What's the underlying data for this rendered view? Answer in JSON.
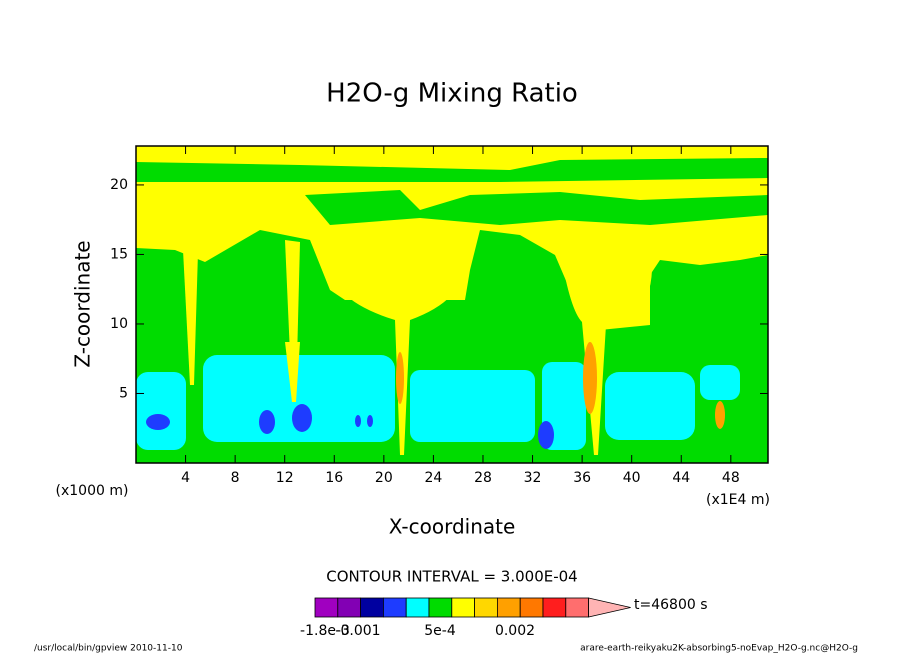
{
  "chart_data": {
    "type": "contour",
    "title": "H2O-g Mixing Ratio",
    "x_label": "X-coordinate",
    "y_label": "Z-coordinate",
    "x_unit": "(x1E4 m)",
    "y_unit": "(x1000 m)",
    "xlim": [
      0,
      51
    ],
    "ylim": [
      0,
      22.8
    ],
    "xticks": [
      4,
      8,
      12,
      16,
      20,
      24,
      28,
      32,
      36,
      40,
      44,
      48
    ],
    "yticks": [
      5,
      10,
      15,
      20
    ],
    "contour_interval": "CONTOUR INTERVAL = 3.000E-04",
    "time": "t=46800 s",
    "colorbar": {
      "colors": [
        "#a000c0",
        "#8200b4",
        "#0000a0",
        "#1e3cff",
        "#00ffff",
        "#00dc00",
        "#ffff00",
        "#ffd700",
        "#ffa000",
        "#ff7800",
        "#ff1e1e",
        "#ff6e6e",
        "#ffb4b4"
      ],
      "labels": [
        "-1.8e-3",
        "-0.001",
        "5e-4",
        "0.002"
      ]
    },
    "footer_left": "/usr/local/bin/gpview  2010-11-10",
    "footer_right": "arare-earth-reikyaku2K-absorbing5-noEvap_H2O-g.nc@H2O-g"
  }
}
